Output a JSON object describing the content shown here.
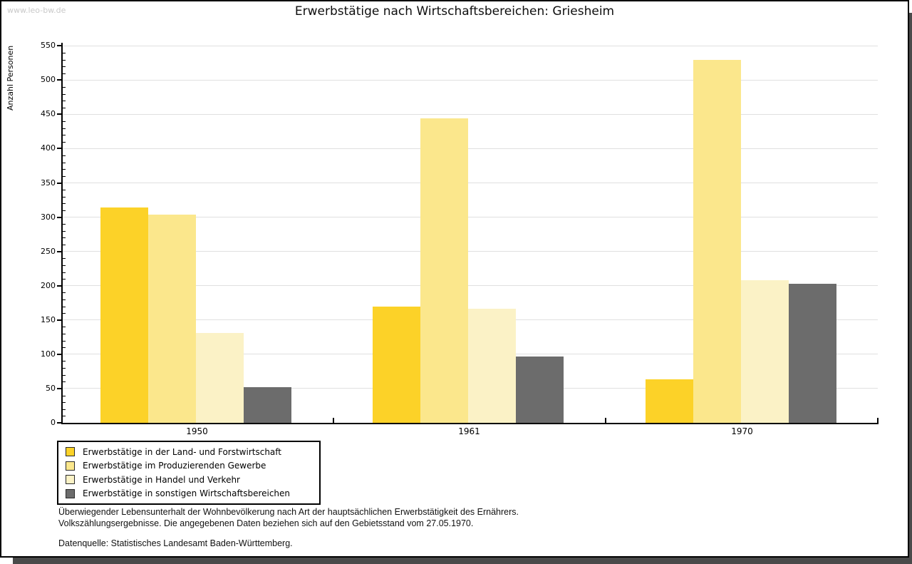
{
  "page": {
    "watermark": "www.leo-bw.de"
  },
  "chart_data": {
    "type": "bar",
    "title": "Erwerbstätige nach Wirtschaftsbereichen: Griesheim",
    "xlabel": "",
    "ylabel": "Anzahl Personen",
    "ylim": [
      0,
      550
    ],
    "ytick_step": 50,
    "yticks": [
      0,
      50,
      100,
      150,
      200,
      250,
      300,
      350,
      400,
      450,
      500,
      550
    ],
    "minor_tick_step": 10,
    "grid": true,
    "legend_position": "bottom-left",
    "categories": [
      "1950",
      "1961",
      "1970"
    ],
    "series": [
      {
        "name": "Erwerbstätige in der Land- und Forstwirtschaft",
        "color": "#FCD228",
        "values": [
          314,
          170,
          63
        ]
      },
      {
        "name": "Erwerbstätige im Produzierenden Gewerbe",
        "color": "#FBE78C",
        "values": [
          304,
          444,
          529
        ]
      },
      {
        "name": "Erwerbstätige in Handel und Verkehr",
        "color": "#FBF2C6",
        "values": [
          131,
          166,
          208
        ]
      },
      {
        "name": "Erwerbstätige in sonstigen Wirtschaftsbereichen",
        "color": "#6C6C6C",
        "values": [
          52,
          97,
          203
        ]
      }
    ]
  },
  "footer": {
    "line1": "Überwiegender Lebensunterhalt der Wohnbevölkerung nach Art der hauptsächlichen Erwerbstätigkeit des Ernährers.",
    "line2": "Volkszählungsergebnisse. Die angegebenen Daten beziehen sich auf den Gebietsstand vom 27.05.1970.",
    "source": "Datenquelle: Statistisches Landesamt Baden-Württemberg."
  }
}
